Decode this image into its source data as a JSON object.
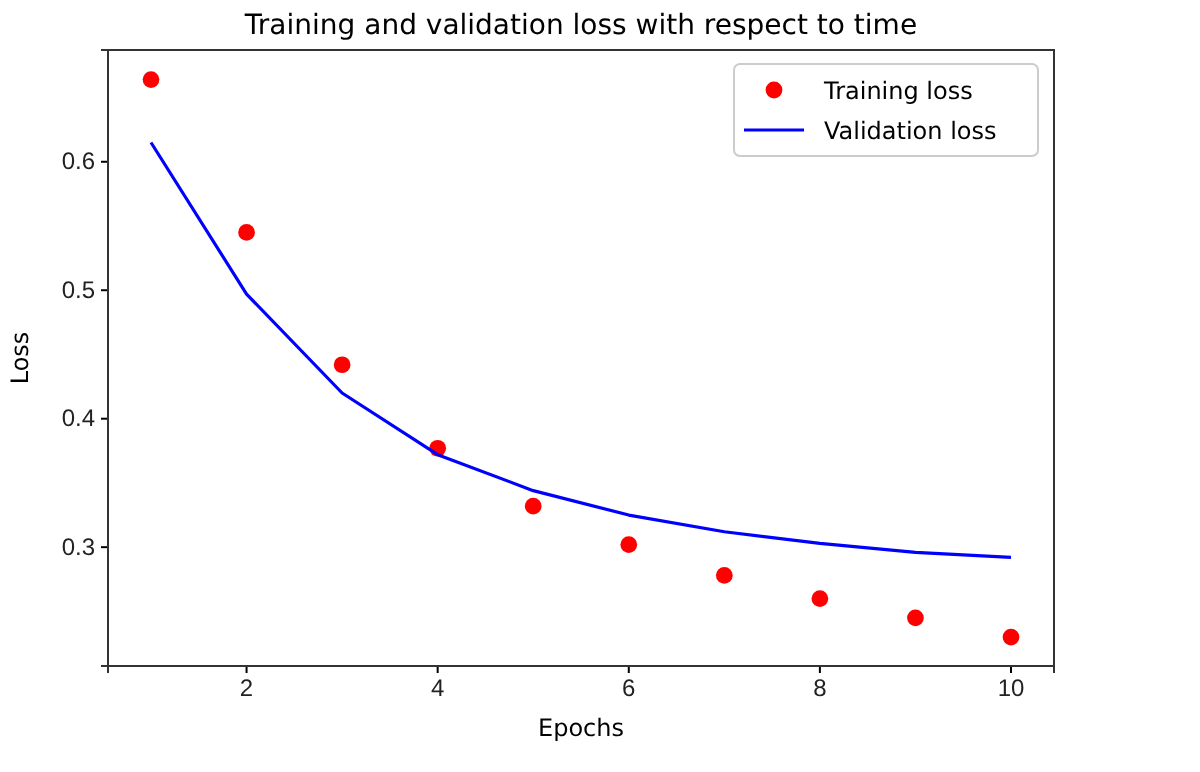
{
  "chart_data": {
    "type": "line",
    "title": "Training and validation loss with respect to time",
    "xlabel": "Epochs",
    "ylabel": "Loss",
    "x": [
      1,
      2,
      3,
      4,
      5,
      6,
      7,
      8,
      9,
      10
    ],
    "series": [
      {
        "name": "Training loss",
        "type": "scatter",
        "color": "#ff0000",
        "marker": "circle",
        "values": [
          0.664,
          0.545,
          0.442,
          0.377,
          0.332,
          0.302,
          0.278,
          0.26,
          0.245,
          0.23
        ]
      },
      {
        "name": "Validation loss",
        "color": "#0000ff",
        "marker": "none",
        "values": [
          0.615,
          0.497,
          0.42,
          0.372,
          0.344,
          0.325,
          0.312,
          0.303,
          0.296,
          0.292
        ]
      }
    ],
    "xlim": [
      0.55,
      10.45
    ],
    "xticks": [
      2,
      4,
      6,
      8,
      10
    ],
    "ylim": [
      0.2075,
      0.687
    ],
    "yticks": [
      0.3,
      0.4,
      0.5,
      0.6
    ],
    "grid": false,
    "legend": "top right"
  }
}
